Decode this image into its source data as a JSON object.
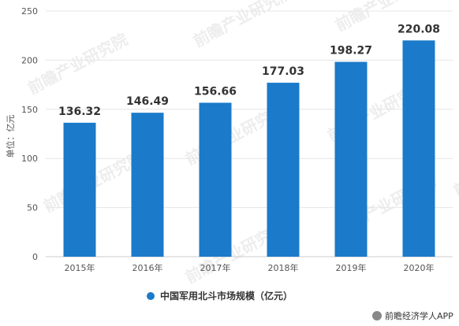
{
  "chart_data": {
    "type": "bar",
    "categories": [
      "2015年",
      "2016年",
      "2017年",
      "2018年",
      "2019年",
      "2020年"
    ],
    "series": [
      {
        "name": "中国军用北斗市场规模（亿元）",
        "values": [
          136.32,
          146.49,
          156.66,
          177.03,
          198.27,
          220.08
        ]
      }
    ],
    "data_labels": [
      "136.32",
      "146.49",
      "156.66",
      "177.03",
      "198.27",
      "220.08"
    ],
    "title": "",
    "xlabel": "",
    "ylabel": "单位：亿元",
    "ylim": [
      0,
      250
    ],
    "yticks": [
      0,
      50,
      100,
      150,
      200,
      250
    ],
    "grid": true,
    "legend_position": "bottom",
    "bar_color": "#1b7ac9"
  },
  "credit": {
    "text": "前瞻经济学人APP"
  },
  "watermark": {
    "text": "前瞻产业研究院"
  }
}
